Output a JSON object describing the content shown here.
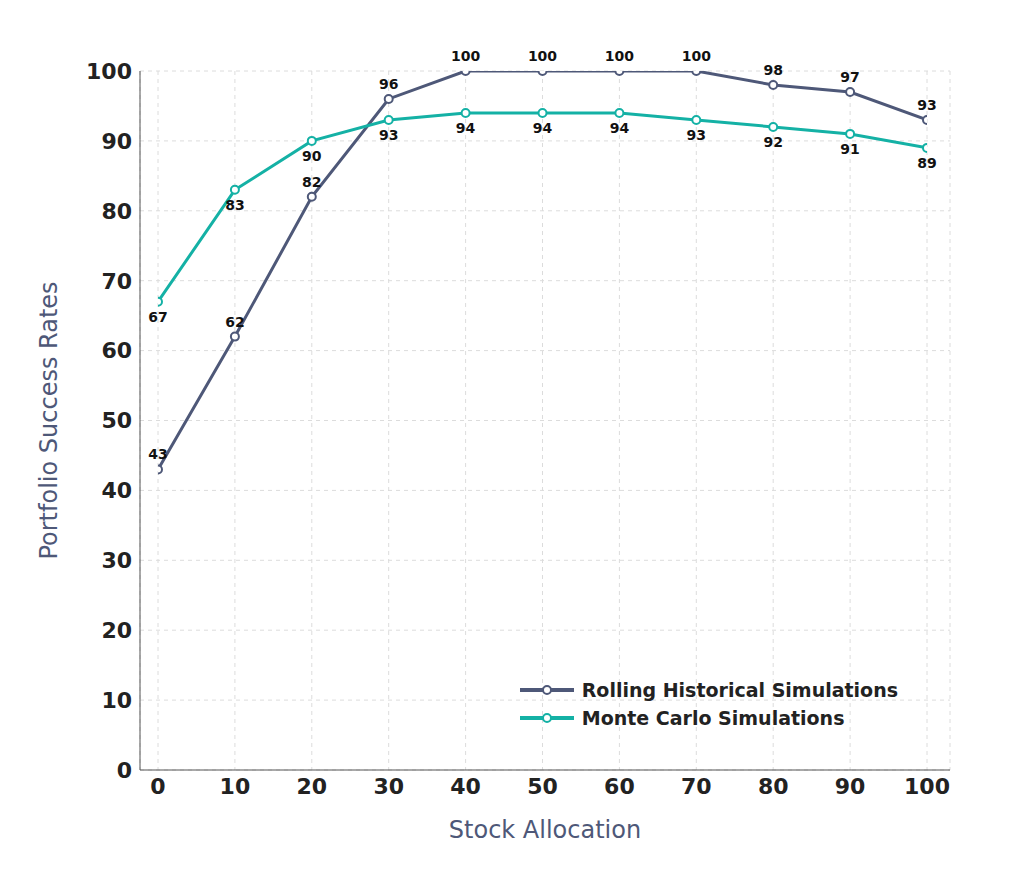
{
  "chart_data": {
    "type": "line",
    "x_label": "Stock Allocation",
    "y_label": "Portfolio Success Rates",
    "x": [
      0,
      10,
      20,
      30,
      40,
      50,
      60,
      70,
      80,
      90,
      100
    ],
    "series": [
      {
        "name": "Rolling Historical Simulations",
        "color": "#4e5878",
        "marker": "circle",
        "values": [
          43,
          62,
          82,
          96,
          100,
          100,
          100,
          100,
          98,
          97,
          93
        ]
      },
      {
        "name": "Monte Carlo Simulations",
        "color": "#14b1a5",
        "marker": "circle",
        "values": [
          67,
          83,
          90,
          93,
          94,
          94,
          94,
          93,
          92,
          91,
          89
        ]
      }
    ],
    "xlim": [
      0,
      100
    ],
    "xticks": [
      0,
      10,
      20,
      30,
      40,
      50,
      60,
      70,
      80,
      90,
      100
    ],
    "ylim": [
      0,
      100
    ],
    "yticks": [
      0,
      10,
      20,
      30,
      40,
      50,
      60,
      70,
      80,
      90,
      100
    ],
    "grid": true,
    "legend": "lower right",
    "data_labels": true
  }
}
